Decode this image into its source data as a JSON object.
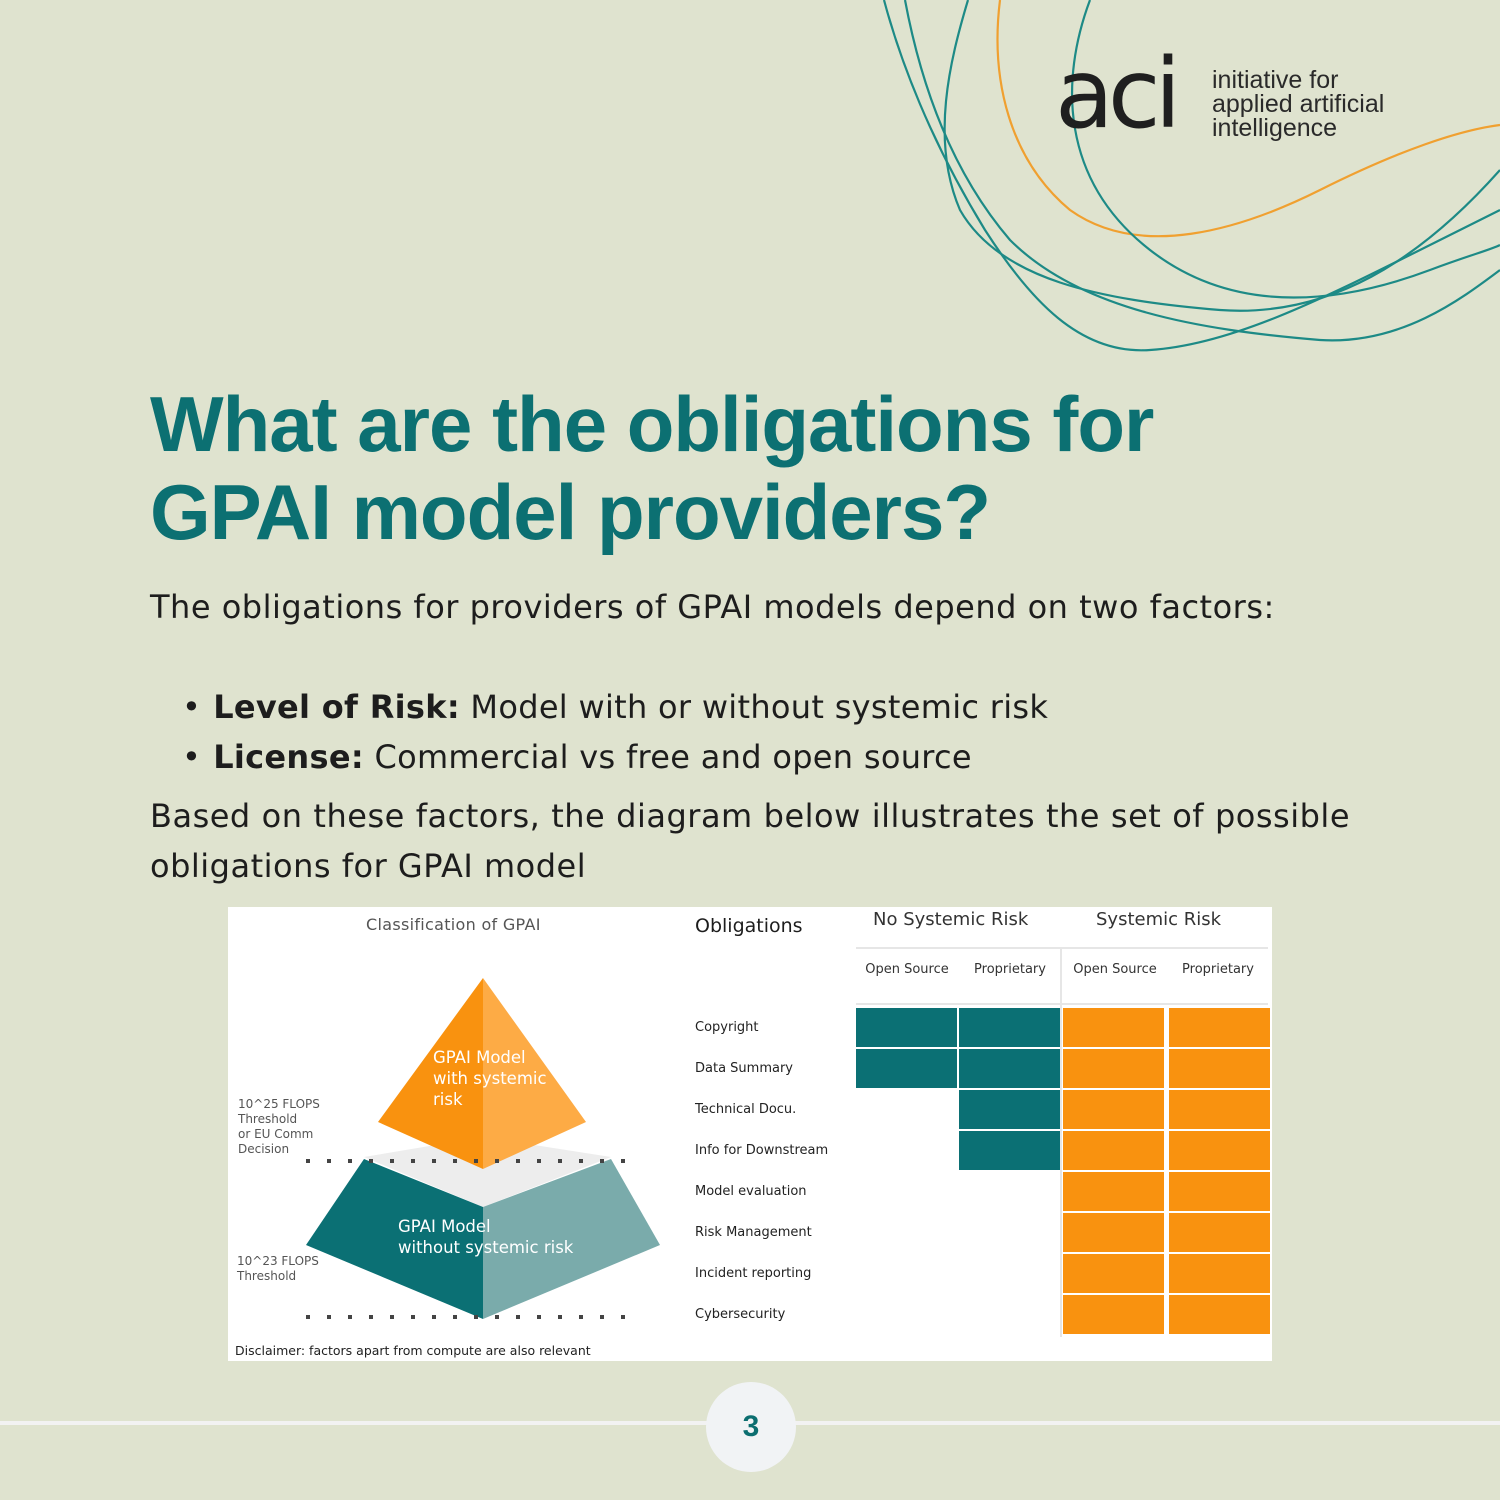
{
  "brand": {
    "logo_mark": "aci",
    "logo_lines": [
      "initiative for",
      "applied artificial",
      "intelligence"
    ]
  },
  "title_lines": [
    "What are the obligations for",
    "GPAI model providers?"
  ],
  "intro": "The obligations for providers of GPAI models depend on two factors:",
  "bullets": [
    {
      "term": "Level of Risk:",
      "text": "Model with or without systemic risk"
    },
    {
      "term": "License:",
      "text": "Commercial vs free and open source"
    }
  ],
  "outro": "Based on these factors, the diagram below illustrates the set of possible obligations for GPAI model",
  "figure": {
    "classification_title": "Classification of GPAI",
    "obligations_title": "Obligations",
    "groups": [
      "No Systemic Risk",
      "Systemic Risk"
    ],
    "columns": [
      "Open Source",
      "Proprietary",
      "Open Source",
      "Proprietary"
    ],
    "rows": [
      {
        "label": "Copyright",
        "cells": [
          "teal",
          "teal",
          "orange",
          "orange"
        ]
      },
      {
        "label": "Data Summary",
        "cells": [
          "teal",
          "teal",
          "orange",
          "orange"
        ]
      },
      {
        "label": "Technical Docu.",
        "cells": [
          "",
          "teal",
          "orange",
          "orange"
        ]
      },
      {
        "label": "Info for Downstream",
        "cells": [
          "",
          "teal",
          "orange",
          "orange"
        ]
      },
      {
        "label": "Model evaluation",
        "cells": [
          "",
          "",
          "orange",
          "orange"
        ]
      },
      {
        "label": "Risk Management",
        "cells": [
          "",
          "",
          "orange",
          "orange"
        ]
      },
      {
        "label": "Incident reporting",
        "cells": [
          "",
          "",
          "orange",
          "orange"
        ]
      },
      {
        "label": "Cybersecurity",
        "cells": [
          "",
          "",
          "orange",
          "orange"
        ]
      }
    ],
    "pyramid_top_lines": [
      "GPAI Model",
      "with systemic",
      "risk"
    ],
    "pyramid_bottom_lines": [
      "GPAI Model",
      "without systemic risk"
    ],
    "threshold_upper_lines": [
      "10^25 FLOPS",
      "Threshold",
      "or EU Comm",
      "Decision"
    ],
    "threshold_lower_lines": [
      "10^23 FLOPS",
      "Threshold"
    ],
    "disclaimer": "Disclaimer: factors apart from compute are also relevant",
    "colors": {
      "teal": "#0b7074",
      "teal_light": "#7aabab",
      "orange": "#f9920f",
      "orange_light": "#fdab45"
    }
  },
  "page_number": "3",
  "colors": {
    "background": "#dfe3cf",
    "title": "#0c7072",
    "curve_teal": "#1d8a86",
    "curve_orange": "#f0a030"
  }
}
